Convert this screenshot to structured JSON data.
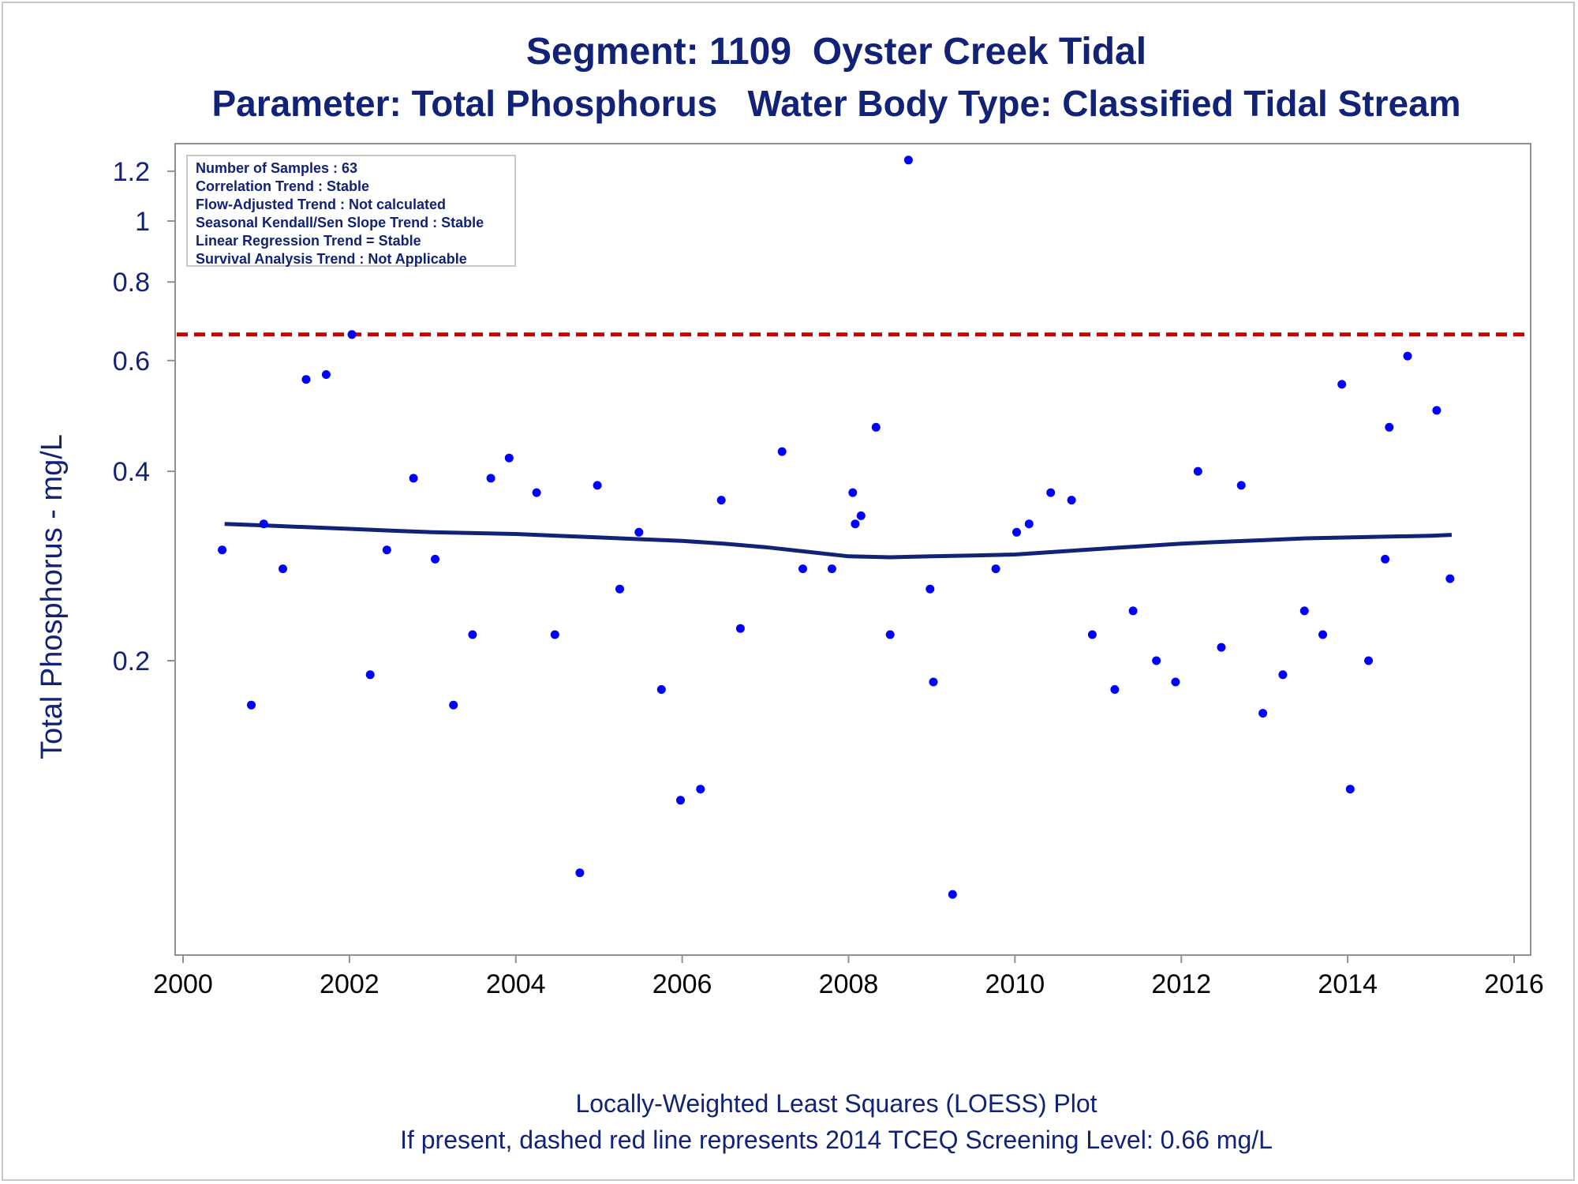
{
  "title": "Segment: 1109  Oyster Creek Tidal",
  "subtitle": "Parameter: Total Phosphorus   Water Body Type: Classified Tidal Stream",
  "footnote1": "Locally-Weighted Least Squares (LOESS) Plot",
  "footnote2": "If present, dashed red line represents 2014 TCEQ Screening Level: 0.66 mg/L",
  "inset": [
    "Number of Samples : 63",
    "Correlation Trend : Stable",
    "Flow-Adjusted Trend : Not calculated",
    "Seasonal Kendall/Sen Slope Trend : Stable",
    "Linear Regression Trend = Stable",
    "Survival Analysis Trend : Not Applicable"
  ],
  "colors": {
    "points": "#0000ff",
    "loess": "#112277",
    "screening": "#cc0000",
    "text": "#112277"
  },
  "chart_data": {
    "type": "scatter",
    "xlabel": "",
    "ylabel": "Total Phosphorus - mg/L",
    "xlim": [
      2000,
      2016
    ],
    "ylim": [
      0.075,
      1.3
    ],
    "yscale": "log",
    "xticks": [
      2000,
      2002,
      2004,
      2006,
      2008,
      2010,
      2012,
      2014,
      2016
    ],
    "yticks": [
      0.2,
      0.4,
      0.6,
      0.8,
      1,
      1.2
    ],
    "ytick_labels": [
      "0.2",
      "0.4",
      "0.6",
      "0.8",
      "1",
      "1.2"
    ],
    "grid": false,
    "screening_level": 0.66,
    "points": [
      [
        2000.47,
        0.3
      ],
      [
        2000.82,
        0.17
      ],
      [
        2000.97,
        0.33
      ],
      [
        2001.2,
        0.28
      ],
      [
        2001.48,
        0.56
      ],
      [
        2001.72,
        0.57
      ],
      [
        2002.03,
        0.66
      ],
      [
        2002.25,
        0.19
      ],
      [
        2002.45,
        0.3
      ],
      [
        2002.77,
        0.39
      ],
      [
        2003.03,
        0.29
      ],
      [
        2003.25,
        0.17
      ],
      [
        2003.48,
        0.22
      ],
      [
        2003.7,
        0.39
      ],
      [
        2003.92,
        0.42
      ],
      [
        2004.25,
        0.37
      ],
      [
        2004.47,
        0.22
      ],
      [
        2004.77,
        0.092
      ],
      [
        2004.98,
        0.38
      ],
      [
        2005.25,
        0.26
      ],
      [
        2005.48,
        0.32
      ],
      [
        2005.75,
        0.18
      ],
      [
        2005.98,
        0.12
      ],
      [
        2006.22,
        0.125
      ],
      [
        2006.47,
        0.36
      ],
      [
        2006.7,
        0.225
      ],
      [
        2007.2,
        0.43
      ],
      [
        2007.45,
        0.28
      ],
      [
        2007.8,
        0.28
      ],
      [
        2008.05,
        0.37
      ],
      [
        2008.08,
        0.33
      ],
      [
        2008.15,
        0.34
      ],
      [
        2008.33,
        0.47
      ],
      [
        2008.5,
        0.22
      ],
      [
        2008.72,
        1.25
      ],
      [
        2008.98,
        0.26
      ],
      [
        2009.02,
        0.185
      ],
      [
        2009.25,
        0.085
      ],
      [
        2009.77,
        0.28
      ],
      [
        2010.02,
        0.32
      ],
      [
        2010.17,
        0.33
      ],
      [
        2010.43,
        0.37
      ],
      [
        2010.68,
        0.36
      ],
      [
        2010.93,
        0.22
      ],
      [
        2011.2,
        0.18
      ],
      [
        2011.42,
        0.24
      ],
      [
        2011.7,
        0.2
      ],
      [
        2011.93,
        0.185
      ],
      [
        2012.2,
        0.4
      ],
      [
        2012.48,
        0.21
      ],
      [
        2012.72,
        0.38
      ],
      [
        2012.98,
        0.165
      ],
      [
        2013.22,
        0.19
      ],
      [
        2013.48,
        0.24
      ],
      [
        2013.7,
        0.22
      ],
      [
        2013.93,
        0.55
      ],
      [
        2014.03,
        0.125
      ],
      [
        2014.25,
        0.2
      ],
      [
        2014.45,
        0.29
      ],
      [
        2014.5,
        0.47
      ],
      [
        2014.72,
        0.61
      ],
      [
        2015.07,
        0.5
      ],
      [
        2015.23,
        0.27
      ]
    ],
    "loess": [
      [
        2000.5,
        0.33
      ],
      [
        2001.0,
        0.328
      ],
      [
        2001.5,
        0.326
      ],
      [
        2002.0,
        0.324
      ],
      [
        2002.5,
        0.322
      ],
      [
        2003.0,
        0.32
      ],
      [
        2003.5,
        0.319
      ],
      [
        2004.0,
        0.318
      ],
      [
        2004.5,
        0.316
      ],
      [
        2005.0,
        0.314
      ],
      [
        2005.5,
        0.312
      ],
      [
        2006.0,
        0.31
      ],
      [
        2006.5,
        0.307
      ],
      [
        2007.0,
        0.303
      ],
      [
        2007.5,
        0.298
      ],
      [
        2008.0,
        0.293
      ],
      [
        2008.5,
        0.292
      ],
      [
        2009.0,
        0.293
      ],
      [
        2009.5,
        0.294
      ],
      [
        2010.0,
        0.295
      ],
      [
        2010.5,
        0.298
      ],
      [
        2011.0,
        0.301
      ],
      [
        2011.5,
        0.304
      ],
      [
        2012.0,
        0.307
      ],
      [
        2012.5,
        0.309
      ],
      [
        2013.0,
        0.311
      ],
      [
        2013.5,
        0.313
      ],
      [
        2014.0,
        0.314
      ],
      [
        2014.5,
        0.315
      ],
      [
        2015.0,
        0.316
      ],
      [
        2015.25,
        0.317
      ]
    ]
  }
}
